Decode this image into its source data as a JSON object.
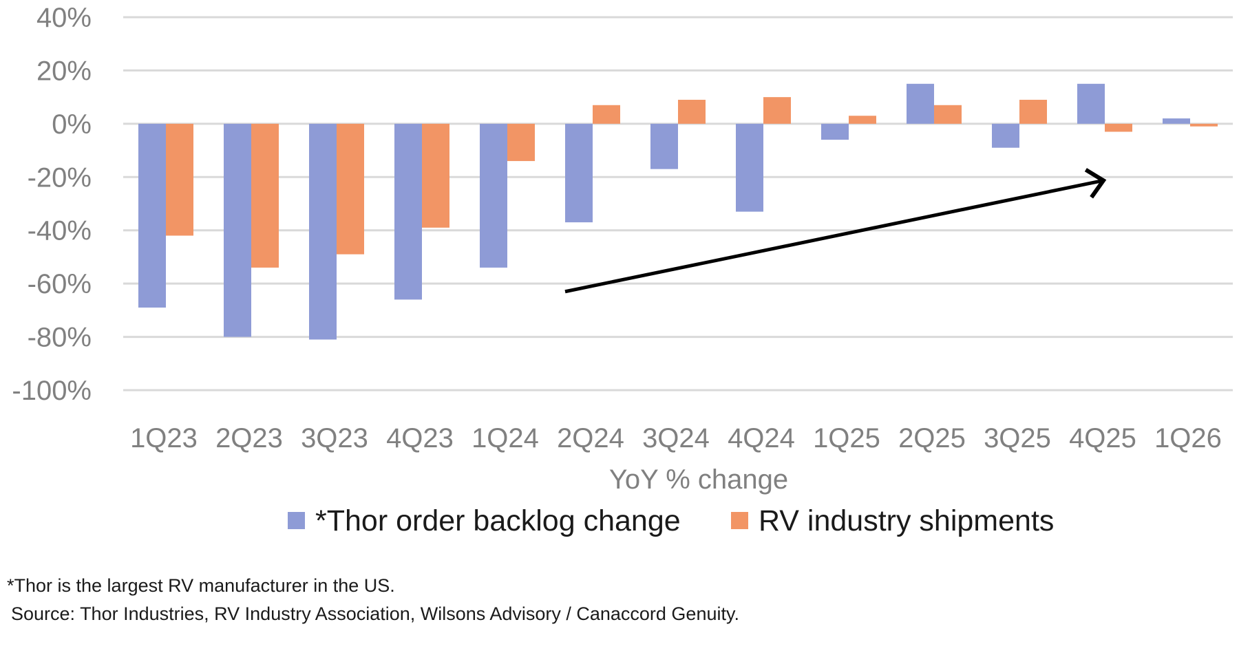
{
  "chart_data": {
    "type": "bar",
    "title": "",
    "xlabel": "YoY % change",
    "ylabel": "",
    "ylim": [
      -100,
      40
    ],
    "yticks": [
      40,
      20,
      0,
      -20,
      -40,
      -60,
      -80,
      -100
    ],
    "ytick_labels": [
      "40%",
      "20%",
      "0%",
      "-20%",
      "-40%",
      "-60%",
      "-80%",
      "-100%"
    ],
    "grid": true,
    "legend_position": "bottom",
    "categories": [
      "1Q23",
      "2Q23",
      "3Q23",
      "4Q23",
      "1Q24",
      "2Q24",
      "3Q24",
      "4Q24",
      "1Q25",
      "2Q25",
      "3Q25",
      "4Q25",
      "1Q26"
    ],
    "series": [
      {
        "name": "*Thor order backlog change",
        "color": "#8E9BD6",
        "values": [
          -69,
          -80,
          -81,
          -66,
          -54,
          -37,
          -17,
          -33,
          -6,
          15,
          -9,
          15,
          2
        ]
      },
      {
        "name": "RV industry shipments",
        "color": "#F29565",
        "values": [
          -42,
          -54,
          -49,
          -39,
          -14,
          7,
          9,
          10,
          3,
          7,
          9,
          -3,
          -1
        ]
      }
    ],
    "annotations": [
      {
        "type": "arrow",
        "description": "upward trend arrow",
        "from": {
          "category": "2Q24",
          "value": -63
        },
        "to": {
          "category": "4Q25",
          "value": -20
        },
        "color": "#000000"
      }
    ]
  },
  "footnotes": {
    "note": "*Thor is the largest RV manufacturer in the US.",
    "source": "Source: Thor Industries, RV Industry Association, Wilsons Advisory / Canaccord Genuity."
  }
}
